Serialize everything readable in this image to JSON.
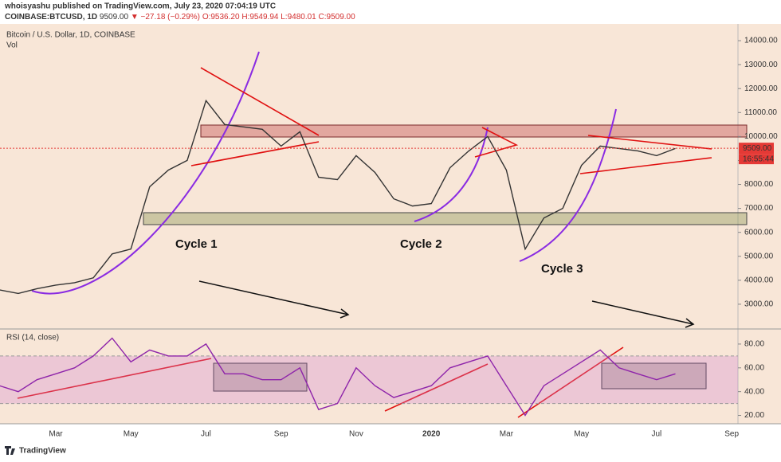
{
  "header": {
    "author_line": "whoisyashu published on TradingView.com, July 23, 2020 07:04:19 UTC",
    "symbol": "COINBASE:BTCUSD, 1D",
    "price": "9509.00",
    "change": "▼ −27.18 (−0.29%)",
    "open": "O:9536.20",
    "high": "H:9549.94",
    "low": "L:9480.01",
    "close": "C:9509.00"
  },
  "footer": "TradingView",
  "chart_data": [
    {
      "type": "line",
      "title": "Bitcoin / U.S. Dollar, 1D, COINBASE",
      "subtitle": "Vol",
      "series": [
        {
          "name": "BTCUSD",
          "color": "#333333",
          "values": [
            3600,
            3450,
            3650,
            3800,
            3900,
            4100,
            5100,
            5300,
            7900,
            8600,
            9000,
            11500,
            10500,
            10400,
            10300,
            9600,
            10200,
            8300,
            8200,
            9200,
            8500,
            7400,
            7100,
            7200,
            8700,
            9400,
            10000,
            8600,
            5300,
            6600,
            7000,
            8800,
            9600,
            9500,
            9400,
            9200,
            9500,
            null,
            null,
            null
          ]
        }
      ],
      "ylim": [
        2000,
        14700
      ],
      "yticks": [
        {
          "value": 3000,
          "label": "3000.00"
        },
        {
          "value": 4000,
          "label": "4000.00"
        },
        {
          "value": 5000,
          "label": "5000.00"
        },
        {
          "value": 6000,
          "label": "6000.00"
        },
        {
          "value": 7000,
          "label": "7000.00"
        },
        {
          "value": 8000,
          "label": "8000.00"
        },
        {
          "value": 9000,
          "label": "9000.00"
        },
        {
          "value": 10000,
          "label": "10000.00"
        },
        {
          "value": 11000,
          "label": "11000.00"
        },
        {
          "value": 12000,
          "label": "12000.00"
        },
        {
          "value": 13000,
          "label": "13000.00"
        },
        {
          "value": 14000,
          "label": "14000.00"
        }
      ],
      "last_price": {
        "value": 9509,
        "label": "9509.00"
      },
      "countdown": "16:55:44",
      "annotations": [
        "Cycle 1",
        "Cycle 2",
        "Cycle 3"
      ]
    },
    {
      "type": "line",
      "title": "RSI (14, close)",
      "categories": [
        null,
        null,
        null,
        "Mar",
        null,
        null,
        null,
        "May",
        null,
        null,
        null,
        "Jul",
        null,
        null,
        null,
        "Sep",
        null,
        null,
        null,
        "Nov",
        null,
        null,
        null,
        "2020",
        null,
        null,
        null,
        "Mar",
        null,
        null,
        null,
        "May",
        null,
        null,
        null,
        "Jul",
        null,
        null,
        null,
        "Sep"
      ],
      "series": [
        {
          "name": "RSI",
          "color": "#8e24aa",
          "values": [
            45,
            40,
            50,
            55,
            60,
            70,
            85,
            65,
            75,
            70,
            70,
            80,
            55,
            55,
            50,
            50,
            60,
            25,
            30,
            60,
            45,
            35,
            40,
            45,
            60,
            65,
            70,
            45,
            20,
            45,
            55,
            65,
            75,
            60,
            55,
            50,
            55,
            null,
            null,
            null
          ]
        }
      ],
      "ylim": [
        13,
        92
      ],
      "band": [
        30,
        70
      ],
      "yticks": [
        {
          "value": 20,
          "label": "20.00"
        },
        {
          "value": 40,
          "label": "40.00"
        },
        {
          "value": 60,
          "label": "60.00"
        },
        {
          "value": 80,
          "label": "80.00"
        }
      ]
    }
  ]
}
